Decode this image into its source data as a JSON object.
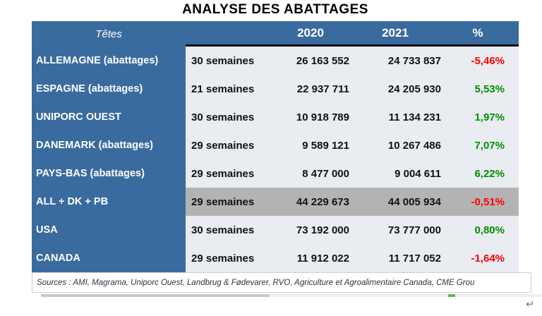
{
  "page": {
    "title": "ANALYSE DES ABATTAGES"
  },
  "table": {
    "header": {
      "tetes": "Têtes",
      "year_2020": "2020",
      "year_2021": "2021",
      "percent": "%"
    },
    "rows": [
      {
        "label": "ALLEMAGNE (abattages)",
        "weeks": "30 semaines",
        "v2020": "26 163 552",
        "v2021": "24 733 837",
        "pct": "-5,46%",
        "trend": "negative",
        "highlight": false
      },
      {
        "label": "ESPAGNE (abattages)",
        "weeks": "21 semaines",
        "v2020": "22 937 711",
        "v2021": "24 205 930",
        "pct": "5,53%",
        "trend": "positive",
        "highlight": false
      },
      {
        "label": "UNIPORC OUEST",
        "weeks": "30 semaines",
        "v2020": "10 918 789",
        "v2021": "11 134 231",
        "pct": "1,97%",
        "trend": "positive",
        "highlight": false
      },
      {
        "label": "DANEMARK (abattages)",
        "weeks": "29 semaines",
        "v2020": "9 589 121",
        "v2021": "10 267 486",
        "pct": "7,07%",
        "trend": "positive",
        "highlight": false
      },
      {
        "label": "PAYS-BAS (abattages)",
        "weeks": "29 semaines",
        "v2020": "8 477 000",
        "v2021": "9 004 611",
        "pct": "6,22%",
        "trend": "positive",
        "highlight": false
      },
      {
        "label": "ALL + DK + PB",
        "weeks": "29 semaines",
        "v2020": "44 229 673",
        "v2021": "44 005 934",
        "pct": "-0,51%",
        "trend": "negative",
        "highlight": true
      },
      {
        "label": "USA",
        "weeks": "30 semaines",
        "v2020": "73 192 000",
        "v2021": "73 777 000",
        "pct": "0,80%",
        "trend": "positive",
        "highlight": false
      },
      {
        "label": "CANADA",
        "weeks": "29 semaines",
        "v2020": "11 912 022",
        "v2021": "11 717 052",
        "pct": "-1,64%",
        "trend": "negative",
        "highlight": false
      }
    ]
  },
  "footer": {
    "sources": "Sources : AMI, Magrama, Uniporc Ouest, Landbrug & Fødevarer, RVO, Agriculture et Agroalimentaire Canada, CME Grou",
    "return_mark": "↵"
  },
  "colors": {
    "header_blue": "#3a6b9e",
    "row_light": "#e9ecf1",
    "row_highlight": "#b3b3b3",
    "negative_red": "#ff0000",
    "positive_green": "#008f00"
  }
}
